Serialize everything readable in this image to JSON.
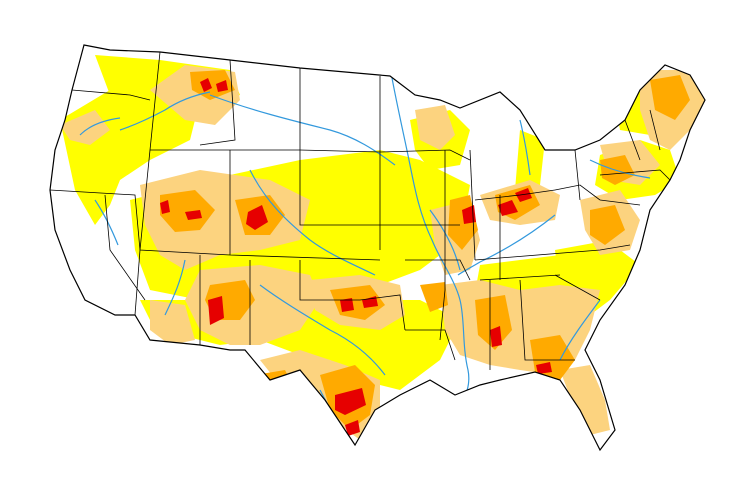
{
  "map": {
    "subject": "contiguous-united-states",
    "colors": {
      "background": "#ffffff",
      "land_none": "#ffffff",
      "abnormally_dry": "#ffff00",
      "moderate": "#fcd37f",
      "severe": "#ffaa00",
      "extreme": "#e60000",
      "rivers": "#3399dd",
      "borders": "#000000"
    },
    "category_order": [
      "none",
      "abnormally_dry",
      "moderate",
      "severe",
      "extreme"
    ]
  }
}
